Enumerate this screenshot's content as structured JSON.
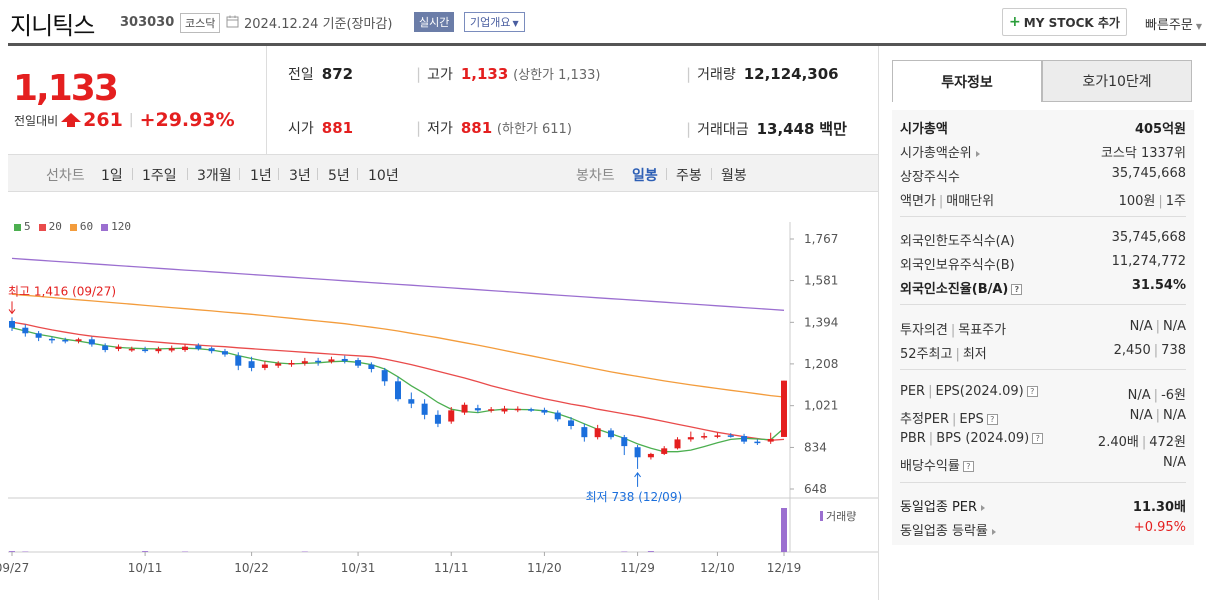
{
  "header": {
    "name": "지니틱스",
    "code": "303030",
    "market": "코스닥",
    "date_text": "2024.12.24  기준(장마감)",
    "realtime_label": "실시간",
    "corp_label": "기업개요",
    "mystock_label": "MY STOCK 추가",
    "quick_order_label": "빠른주문"
  },
  "price": {
    "current": "1,133",
    "change_label": "전일대비",
    "change_value": "261",
    "change_pct": "+29.93%"
  },
  "stats": {
    "prev_label": "전일",
    "prev_value": "872",
    "high_label": "고가",
    "high_value": "1,133",
    "high_sub": "(상한가 1,133)",
    "volume_label": "거래량",
    "volume_value": "12,124,306",
    "open_label": "시가",
    "open_value": "881",
    "low_label": "저가",
    "low_value": "881",
    "low_sub": "(하한가 611)",
    "amount_label": "거래대금",
    "amount_value": "13,448",
    "amount_unit": "백만"
  },
  "period_bar": {
    "line_chart_label": "선차트",
    "periods": [
      "1일",
      "1주일",
      "3개월",
      "1년",
      "3년",
      "5년",
      "10년"
    ],
    "candle_chart_label": "봉차트",
    "candle_periods": [
      "일봉",
      "주봉",
      "월봉"
    ],
    "active_candle": "일봉"
  },
  "chart_data": {
    "type": "candlestick",
    "ma_legend": [
      {
        "name": "5",
        "color": "#4caf50"
      },
      {
        "name": "20",
        "color": "#e94b4b"
      },
      {
        "name": "60",
        "color": "#f39c3c"
      },
      {
        "name": "120",
        "color": "#9b6fd0"
      }
    ],
    "y_ticks": [
      "1,767",
      "1,581",
      "1,394",
      "1,208",
      "1,021",
      "834",
      "648"
    ],
    "ylim": [
      648,
      1767
    ],
    "x_ticks": [
      "09/27",
      "10/11",
      "10/22",
      "10/31",
      "11/11",
      "11/20",
      "11/29",
      "12/10",
      "12/19"
    ],
    "max_annotation": "최고 1,416 (09/27)",
    "min_annotation": "최저 738 (12/09)",
    "volume_label": "거래량",
    "candles": [
      {
        "o": 1400,
        "c": 1370,
        "h": 1416,
        "l": 1355
      },
      {
        "o": 1370,
        "c": 1345,
        "h": 1385,
        "l": 1330
      },
      {
        "o": 1345,
        "c": 1325,
        "h": 1355,
        "l": 1310
      },
      {
        "o": 1320,
        "c": 1315,
        "h": 1330,
        "l": 1300
      },
      {
        "o": 1315,
        "c": 1312,
        "h": 1325,
        "l": 1300
      },
      {
        "o": 1310,
        "c": 1318,
        "h": 1325,
        "l": 1300
      },
      {
        "o": 1318,
        "c": 1295,
        "h": 1330,
        "l": 1285
      },
      {
        "o": 1290,
        "c": 1270,
        "h": 1300,
        "l": 1260
      },
      {
        "o": 1275,
        "c": 1285,
        "h": 1295,
        "l": 1265
      },
      {
        "o": 1270,
        "c": 1275,
        "h": 1285,
        "l": 1262
      },
      {
        "o": 1272,
        "c": 1268,
        "h": 1285,
        "l": 1258
      },
      {
        "o": 1265,
        "c": 1275,
        "h": 1285,
        "l": 1255
      },
      {
        "o": 1268,
        "c": 1278,
        "h": 1290,
        "l": 1260
      },
      {
        "o": 1270,
        "c": 1285,
        "h": 1295,
        "l": 1262
      },
      {
        "o": 1290,
        "c": 1275,
        "h": 1300,
        "l": 1268
      },
      {
        "o": 1278,
        "c": 1265,
        "h": 1285,
        "l": 1255
      },
      {
        "o": 1265,
        "c": 1250,
        "h": 1275,
        "l": 1240
      },
      {
        "o": 1245,
        "c": 1200,
        "h": 1260,
        "l": 1180
      },
      {
        "o": 1220,
        "c": 1190,
        "h": 1240,
        "l": 1175
      },
      {
        "o": 1190,
        "c": 1205,
        "h": 1220,
        "l": 1180
      },
      {
        "o": 1200,
        "c": 1210,
        "h": 1220,
        "l": 1190
      },
      {
        "o": 1205,
        "c": 1212,
        "h": 1225,
        "l": 1195
      },
      {
        "o": 1210,
        "c": 1220,
        "h": 1235,
        "l": 1200
      },
      {
        "o": 1222,
        "c": 1215,
        "h": 1235,
        "l": 1200
      },
      {
        "o": 1218,
        "c": 1228,
        "h": 1240,
        "l": 1210
      },
      {
        "o": 1230,
        "c": 1220,
        "h": 1245,
        "l": 1210
      },
      {
        "o": 1225,
        "c": 1200,
        "h": 1235,
        "l": 1190
      },
      {
        "o": 1205,
        "c": 1185,
        "h": 1215,
        "l": 1170
      },
      {
        "o": 1180,
        "c": 1130,
        "h": 1190,
        "l": 1110
      },
      {
        "o": 1130,
        "c": 1050,
        "h": 1150,
        "l": 1040
      },
      {
        "o": 1050,
        "c": 1030,
        "h": 1080,
        "l": 1010
      },
      {
        "o": 1030,
        "c": 980,
        "h": 1050,
        "l": 960
      },
      {
        "o": 980,
        "c": 940,
        "h": 1000,
        "l": 925
      },
      {
        "o": 950,
        "c": 1000,
        "h": 1015,
        "l": 940
      },
      {
        "o": 990,
        "c": 1025,
        "h": 1035,
        "l": 980
      },
      {
        "o": 1010,
        "c": 1000,
        "h": 1025,
        "l": 990
      },
      {
        "o": 1000,
        "c": 1005,
        "h": 1015,
        "l": 990
      },
      {
        "o": 995,
        "c": 1008,
        "h": 1020,
        "l": 985
      },
      {
        "o": 1002,
        "c": 1007,
        "h": 1018,
        "l": 992
      },
      {
        "o": 1005,
        "c": 1003,
        "h": 1012,
        "l": 993
      },
      {
        "o": 1002,
        "c": 990,
        "h": 1012,
        "l": 980
      },
      {
        "o": 990,
        "c": 960,
        "h": 1000,
        "l": 950
      },
      {
        "o": 955,
        "c": 930,
        "h": 970,
        "l": 915
      },
      {
        "o": 925,
        "c": 880,
        "h": 940,
        "l": 860
      },
      {
        "o": 880,
        "c": 920,
        "h": 935,
        "l": 870
      },
      {
        "o": 910,
        "c": 880,
        "h": 920,
        "l": 870
      },
      {
        "o": 880,
        "c": 840,
        "h": 890,
        "l": 800
      },
      {
        "o": 835,
        "c": 790,
        "h": 845,
        "l": 738
      },
      {
        "o": 790,
        "c": 805,
        "h": 810,
        "l": 780
      },
      {
        "o": 805,
        "c": 830,
        "h": 840,
        "l": 800
      },
      {
        "o": 830,
        "c": 870,
        "h": 880,
        "l": 825
      },
      {
        "o": 870,
        "c": 880,
        "h": 905,
        "l": 860
      },
      {
        "o": 880,
        "c": 885,
        "h": 900,
        "l": 870
      },
      {
        "o": 885,
        "c": 888,
        "h": 900,
        "l": 875
      },
      {
        "o": 888,
        "c": 885,
        "h": 898,
        "l": 878
      },
      {
        "o": 885,
        "c": 860,
        "h": 895,
        "l": 850
      },
      {
        "o": 860,
        "c": 855,
        "h": 870,
        "l": 845
      },
      {
        "o": 860,
        "c": 872,
        "h": 900,
        "l": 850
      },
      {
        "o": 881,
        "c": 1133,
        "h": 1133,
        "l": 881
      }
    ],
    "ma5": [
      1370,
      1355,
      1340,
      1330,
      1318,
      1310,
      1300,
      1290,
      1282,
      1278,
      1276,
      1275,
      1277,
      1278,
      1276,
      1270,
      1260,
      1245,
      1232,
      1220,
      1212,
      1208,
      1210,
      1213,
      1218,
      1220,
      1215,
      1205,
      1185,
      1150,
      1110,
      1075,
      1035,
      1005,
      995,
      990,
      1000,
      1005,
      1004,
      1003,
      998,
      985,
      965,
      940,
      915,
      895,
      875,
      850,
      830,
      815,
      815,
      822,
      838,
      855,
      870,
      875,
      872,
      868,
      920
    ],
    "ma20": [
      1395,
      1385,
      1372,
      1360,
      1350,
      1340,
      1332,
      1326,
      1320,
      1315,
      1310,
      1305,
      1300,
      1296,
      1292,
      1288,
      1285,
      1280,
      1276,
      1272,
      1268,
      1264,
      1260,
      1256,
      1252,
      1248,
      1244,
      1240,
      1230,
      1218,
      1205,
      1190,
      1175,
      1160,
      1145,
      1128,
      1110,
      1095,
      1080,
      1066,
      1052,
      1040,
      1028,
      1018,
      1005,
      995,
      984,
      974,
      962,
      950,
      938,
      926,
      914,
      902,
      892,
      882,
      874,
      866,
      870
    ],
    "ma60": [
      1520,
      1515,
      1510,
      1505,
      1500,
      1495,
      1490,
      1485,
      1480,
      1475,
      1470,
      1465,
      1460,
      1455,
      1450,
      1445,
      1440,
      1435,
      1430,
      1424,
      1418,
      1412,
      1406,
      1400,
      1394,
      1388,
      1380,
      1372,
      1364,
      1355,
      1345,
      1335,
      1325,
      1314,
      1303,
      1292,
      1280,
      1268,
      1256,
      1244,
      1232,
      1220,
      1208,
      1196,
      1184,
      1172,
      1162,
      1152,
      1142,
      1132,
      1123,
      1114,
      1106,
      1098,
      1090,
      1082,
      1074,
      1066,
      1060
    ],
    "ma120": [
      1680,
      1676,
      1672,
      1668,
      1664,
      1660,
      1656,
      1652,
      1648,
      1644,
      1640,
      1636,
      1632,
      1628,
      1624,
      1620,
      1616,
      1612,
      1608,
      1604,
      1600,
      1596,
      1592,
      1588,
      1584,
      1580,
      1576,
      1572,
      1568,
      1564,
      1560,
      1556,
      1552,
      1548,
      1544,
      1540,
      1536,
      1532,
      1528,
      1524,
      1520,
      1516,
      1512,
      1508,
      1504,
      1500,
      1496,
      1492,
      1488,
      1484,
      1480,
      1476,
      1472,
      1468,
      1464,
      1460,
      1456,
      1452,
      1448
    ],
    "volumes": [
      2,
      1,
      0,
      0,
      0,
      0,
      0,
      0,
      0,
      0,
      2,
      0,
      0,
      1,
      0,
      0,
      0,
      0,
      0,
      0,
      0,
      0,
      1,
      0,
      0,
      0,
      0,
      0,
      0,
      0,
      0,
      0,
      0,
      0,
      0,
      0,
      0,
      0,
      0,
      0,
      0,
      0,
      0,
      0,
      0,
      0,
      1,
      0,
      2,
      0,
      0,
      0,
      0,
      0,
      0,
      0,
      0,
      0,
      100
    ]
  },
  "invest_tabs": {
    "tab1": "투자정보",
    "tab2": "호가10단계"
  },
  "invest": {
    "mcap_label": "시가총액",
    "mcap_value": "405억원",
    "rank_label": "시가총액순위",
    "rank_value": "코스닥 1337위",
    "shares_label": "상장주식수",
    "shares_value": "35,745,668",
    "par_label": "액면가",
    "unit_label": "매매단위",
    "par_value": "100원",
    "unit_value": "1주",
    "foreign_limit_label": "외국인한도주식수(A)",
    "foreign_limit_value": "35,745,668",
    "foreign_hold_label": "외국인보유주식수(B)",
    "foreign_hold_value": "11,274,772",
    "foreign_ratio_label": "외국인소진율(B/A)",
    "foreign_ratio_value": "31.54%",
    "opinion_label": "투자의견",
    "target_label": "목표주가",
    "opinion_value": "N/A",
    "target_value": "N/A",
    "w52_high_label": "52주최고",
    "w52_low_label": "최저",
    "w52_high_value": "2,450",
    "w52_low_value": "738",
    "per_label": "PER",
    "eps_label": "EPS(2024.09)",
    "per_value": "N/A",
    "eps_value": "-6원",
    "est_per_label": "추정PER",
    "est_eps_label": "EPS",
    "est_per_value": "N/A",
    "est_eps_value": "N/A",
    "pbr_label": "PBR",
    "bps_label": "BPS (2024.09)",
    "pbr_value": "2.40배",
    "bps_value": "472원",
    "div_label": "배당수익률",
    "div_value": "N/A",
    "ind_per_label": "동일업종 PER",
    "ind_per_value": "11.30배",
    "ind_rate_label": "동일업종 등락률",
    "ind_rate_value": "+0.95%"
  }
}
